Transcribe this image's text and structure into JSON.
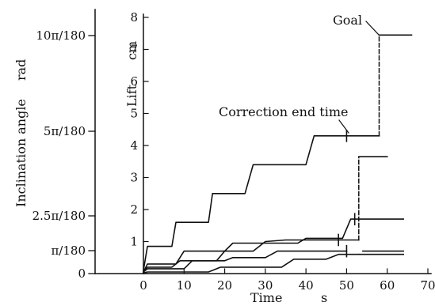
{
  "chart_data": {
    "type": "line",
    "left_axis": {
      "title": "Inclination angle",
      "unit": "rad",
      "ticks": [
        {
          "label": "0",
          "value": 0
        },
        {
          "label": "π/180",
          "value": 1
        },
        {
          "label": "2.5π/180",
          "value": 2.5
        },
        {
          "label": "5π/180",
          "value": 5
        },
        {
          "label": "10π/180",
          "value": 10
        }
      ]
    },
    "y_axis": {
      "title": "Lift",
      "unit": "cm",
      "range": [
        0,
        8
      ],
      "ticks": [
        "0",
        "1",
        "2",
        "3",
        "4",
        "5",
        "6",
        "7",
        "8"
      ]
    },
    "x_axis": {
      "title": "Time",
      "unit": "s",
      "range": [
        0,
        70
      ],
      "ticks": [
        "0",
        "10",
        "20",
        "30",
        "40",
        "50",
        "60",
        "70"
      ]
    },
    "annotations": {
      "goal": "Goal",
      "correction": "Correction end time"
    },
    "series": [
      {
        "points": [
          [
            0,
            0.1
          ],
          [
            1,
            0.85
          ],
          [
            7,
            0.85
          ],
          [
            8,
            1.6
          ],
          [
            16,
            1.6
          ],
          [
            17,
            2.5
          ],
          [
            25,
            2.5
          ],
          [
            27,
            3.4
          ],
          [
            40,
            3.4
          ],
          [
            42,
            4.3
          ],
          [
            58,
            4.3
          ]
        ],
        "dashed": [
          [
            58,
            4.3
          ],
          [
            58,
            7.45
          ]
        ],
        "tail": [
          [
            58,
            7.45
          ],
          [
            66,
            7.45
          ]
        ],
        "marker_x": 50
      },
      {
        "points": [
          [
            0,
            0.05
          ],
          [
            1,
            0.3
          ],
          [
            8,
            0.3
          ],
          [
            10,
            0.7
          ],
          [
            20,
            0.7
          ],
          [
            22,
            0.95
          ],
          [
            38,
            0.95
          ],
          [
            40,
            1.1
          ],
          [
            49,
            1.1
          ],
          [
            51,
            1.7
          ],
          [
            52,
            1.7
          ]
        ],
        "tail": [
          [
            52,
            1.7
          ],
          [
            64,
            1.7
          ]
        ],
        "marker_x": 52
      },
      {
        "points": [
          [
            0,
            0.05
          ],
          [
            1,
            0.2
          ],
          [
            7,
            0.2
          ],
          [
            9,
            0.4
          ],
          [
            18,
            0.4
          ],
          [
            20,
            0.7
          ],
          [
            27,
            0.7
          ],
          [
            30,
            1.0
          ],
          [
            35,
            1.05
          ],
          [
            53,
            1.05
          ]
        ],
        "dashed": [
          [
            53,
            1.05
          ],
          [
            53,
            3.65
          ]
        ],
        "tail": [
          [
            53,
            3.65
          ],
          [
            60,
            3.65
          ]
        ],
        "marker_x": 48
      },
      {
        "points": [
          [
            0,
            0.05
          ],
          [
            1,
            0.15
          ],
          [
            10,
            0.15
          ],
          [
            12,
            0.4
          ],
          [
            20,
            0.4
          ],
          [
            22,
            0.5
          ],
          [
            30,
            0.5
          ],
          [
            33,
            0.7
          ],
          [
            50,
            0.7
          ]
        ],
        "tail": [
          [
            54,
            0.7
          ],
          [
            64,
            0.7
          ]
        ],
        "marker_x": 50
      },
      {
        "points": [
          [
            0,
            0.02
          ],
          [
            1,
            0.05
          ],
          [
            16,
            0.05
          ],
          [
            19,
            0.2
          ],
          [
            34,
            0.2
          ],
          [
            37,
            0.45
          ],
          [
            45,
            0.45
          ],
          [
            48,
            0.6
          ],
          [
            51,
            0.6
          ],
          [
            53,
            0.6
          ]
        ],
        "tail": [
          [
            53,
            0.6
          ],
          [
            64,
            0.6
          ]
        ],
        "marker_x": null
      }
    ]
  }
}
